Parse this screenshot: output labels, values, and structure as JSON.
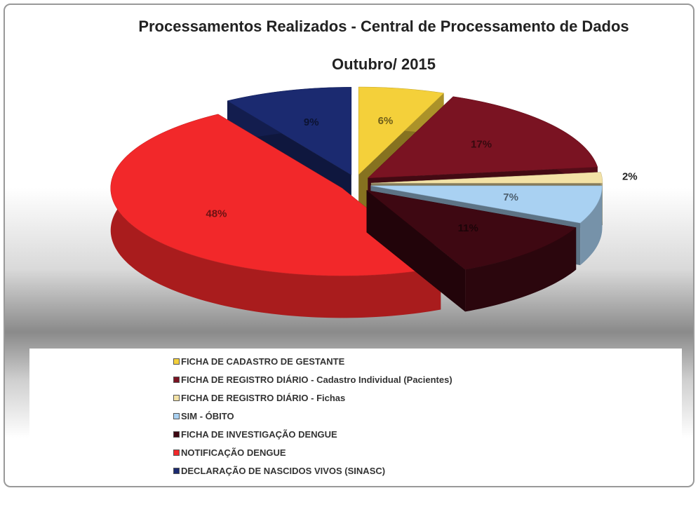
{
  "chart_data": {
    "type": "pie3d",
    "title": "Processamentos Realizados - Central de Processamento de Dados",
    "subtitle": "Outubro/ 2015",
    "categories": [
      "FICHA DE CADASTRO DE GESTANTE",
      "FICHA DE REGISTRO DIÁRIO - Cadastro Individual (Pacientes)",
      "FICHA DE REGISTRO DIÁRIO - Fichas",
      "SIM - ÓBITO",
      "FICHA DE INVESTIGAÇÃO DENGUE",
      "NOTIFICAÇÃO DENGUE",
      "DECLARAÇÃO DE NASCIDOS VIVOS (SINASC)"
    ],
    "values": [
      6,
      17,
      2,
      7,
      11,
      48,
      9
    ],
    "value_labels": [
      "6%",
      "17%",
      "2%",
      "7%",
      "11%",
      "48%",
      "9%"
    ],
    "colors": [
      "#f4d03a",
      "#7a1322",
      "#f3e2a6",
      "#a9d1f2",
      "#3e0812",
      "#f2282a",
      "#1b2a70"
    ]
  }
}
